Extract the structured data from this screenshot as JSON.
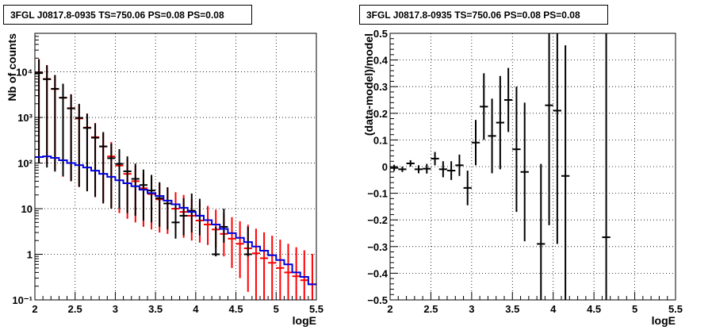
{
  "chart_data": [
    {
      "type": "line",
      "title": "3FGL J0817.8-0935 TS=750.06 PS=0.08 PS=0.08",
      "xlabel": "logE",
      "ylabel": "Nb of counts",
      "xlim": [
        2,
        5.5
      ],
      "ylim": [
        0.1,
        70000
      ],
      "y_scale": "log",
      "grid": true,
      "x_ticks": [
        "2",
        "2.5",
        "3",
        "3.5",
        "4",
        "4.5",
        "5",
        "5.5"
      ],
      "y_ticks": [
        {
          "v": 0.1,
          "label": "10⁻¹"
        },
        {
          "v": 1,
          "label": "1"
        },
        {
          "v": 10,
          "label": "10"
        },
        {
          "v": 100,
          "label": "10²"
        },
        {
          "v": 1000,
          "label": "10³"
        },
        {
          "v": 10000,
          "label": "10⁴"
        }
      ],
      "series": [
        {
          "kind": "errorbar",
          "color": "#ff0000",
          "x": [
            2.05,
            2.15,
            2.25,
            2.35,
            2.45,
            2.55,
            2.65,
            2.75,
            2.85,
            2.95,
            3.05,
            3.15,
            3.25,
            3.35,
            3.45,
            3.55,
            3.65,
            3.75,
            3.85,
            3.95,
            4.05,
            4.15,
            4.25,
            4.35,
            4.45,
            4.55,
            4.65,
            4.75,
            4.85,
            4.95,
            5.05,
            5.15,
            5.25,
            5.35,
            5.45
          ],
          "y": [
            9500,
            7000,
            4200,
            2700,
            1600,
            950,
            600,
            370,
            230,
            140,
            88,
            58,
            40,
            28,
            21,
            16,
            13,
            10,
            8.5,
            7,
            5.5,
            4.5,
            3.5,
            2.8,
            2.2,
            1.7,
            1.35,
            1.05,
            0.82,
            0.65,
            0.5,
            0.4,
            0.33,
            0.27,
            0.22
          ],
          "err_lo": [
            9400,
            6900,
            4130,
            2650,
            1560,
            920,
            575,
            352,
            216,
            130,
            80,
            52,
            35,
            24,
            17.5,
            13,
            10.2,
            7.6,
            6.2,
            5,
            3.7,
            2.9,
            2.1,
            1.9,
            1.7,
            1.4,
            1.2,
            0.95,
            0.75,
            0.6,
            0.46,
            0.37,
            0.31,
            0.25,
            0.2
          ],
          "err_hi": [
            9600,
            7100,
            4270,
            2750,
            1640,
            980,
            625,
            388,
            244,
            150,
            96,
            64,
            46,
            33,
            25,
            20,
            16,
            13,
            11.5,
            9.5,
            8,
            7,
            6,
            5,
            4.3,
            3.6,
            3.1,
            2.6,
            2.2,
            1.9,
            1.6,
            1.3,
            1.1,
            0.95,
            0.8
          ]
        },
        {
          "kind": "errorbar",
          "color": "#000000",
          "x": [
            2.05,
            2.15,
            2.25,
            2.35,
            2.45,
            2.55,
            2.65,
            2.75,
            2.85,
            2.95,
            3.05,
            3.15,
            3.25,
            3.35,
            3.45,
            3.55,
            3.65,
            3.75,
            3.85,
            3.95,
            4.05,
            4.25,
            4.35,
            4.65
          ],
          "y": [
            9400,
            6900,
            4250,
            2720,
            1580,
            980,
            590,
            360,
            232,
            128,
            96,
            66,
            45,
            33,
            25,
            17,
            13,
            5,
            7,
            9,
            7,
            1,
            4,
            1
          ],
          "err_lo": [
            9300,
            6820,
            4185,
            2668,
            1540,
            950,
            566,
            342,
            219,
            118,
            86,
            58,
            38,
            27.5,
            20,
            13,
            9.5,
            2.8,
            4.4,
            6,
            4.4,
            0.1,
            2.2,
            0.1
          ],
          "err_hi": [
            9500,
            6980,
            4315,
            2772,
            1620,
            1010,
            614,
            378,
            245,
            140,
            106,
            74,
            52,
            39,
            30,
            21,
            16.5,
            7.5,
            10,
            12.5,
            9.5,
            3,
            6,
            3
          ]
        },
        {
          "kind": "step",
          "color": "#0000dd",
          "edges": [
            2.0,
            2.1,
            2.2,
            2.3,
            2.4,
            2.5,
            2.6,
            2.7,
            2.8,
            2.9,
            3.0,
            3.1,
            3.2,
            3.3,
            3.4,
            3.5,
            3.6,
            3.7,
            3.8,
            3.9,
            4.0,
            4.1,
            4.2,
            4.3,
            4.4,
            4.5,
            4.6,
            4.7,
            4.8,
            4.9,
            5.0,
            5.1,
            5.2,
            5.3,
            5.4,
            5.5
          ],
          "y": [
            135,
            140,
            130,
            115,
            100,
            90,
            80,
            68,
            58,
            50,
            42,
            36,
            31,
            26,
            22,
            19,
            15,
            12.5,
            10.5,
            8.5,
            7,
            5.6,
            4.5,
            3.6,
            2.9,
            2.3,
            1.85,
            1.48,
            1.2,
            0.95,
            0.75,
            0.6,
            0.4,
            0.32,
            0.22
          ]
        }
      ]
    },
    {
      "type": "scatter",
      "title": "3FGL J0817.8-0935 TS=750.06 PS=0.08 PS=0.08",
      "xlabel": "logE",
      "ylabel": "(data-model)/model",
      "xlim": [
        2,
        5.5
      ],
      "ylim": [
        -0.5,
        0.5
      ],
      "grid": true,
      "x_ticks": [
        "2",
        "2.5",
        "3",
        "3.5",
        "4",
        "4.5",
        "5",
        "5.5"
      ],
      "y_ticks": [
        {
          "v": -0.5,
          "label": "−0.5"
        },
        {
          "v": -0.4,
          "label": "−0.4"
        },
        {
          "v": -0.3,
          "label": "−0.3"
        },
        {
          "v": -0.2,
          "label": "−0.2"
        },
        {
          "v": -0.1,
          "label": "−0.1"
        },
        {
          "v": 0,
          "label": "0"
        },
        {
          "v": 0.1,
          "label": "0.1"
        },
        {
          "v": 0.2,
          "label": "0.2"
        },
        {
          "v": 0.3,
          "label": "0.3"
        },
        {
          "v": 0.4,
          "label": "0.4"
        },
        {
          "v": 0.5,
          "label": "0.5"
        }
      ],
      "series": [
        {
          "kind": "errorbar",
          "color": "#000000",
          "x": [
            2.05,
            2.15,
            2.25,
            2.35,
            2.45,
            2.55,
            2.65,
            2.75,
            2.85,
            2.95,
            3.05,
            3.15,
            3.25,
            3.35,
            3.45,
            3.55,
            3.65,
            3.85,
            3.95,
            4.05,
            4.15,
            4.65
          ],
          "y": [
            -0.005,
            -0.01,
            0.012,
            -0.01,
            -0.008,
            0.03,
            -0.01,
            -0.015,
            0.005,
            -0.08,
            0.09,
            0.225,
            0.115,
            0.165,
            0.25,
            0.065,
            -0.02,
            -0.29,
            0.23,
            0.21,
            -0.035,
            -0.265
          ],
          "err": [
            0.012,
            0.01,
            0.012,
            0.015,
            0.018,
            0.025,
            0.03,
            0.035,
            0.04,
            0.065,
            0.085,
            0.125,
            0.14,
            0.175,
            0.12,
            0.235,
            0.26,
            0.3,
            0.45,
            0.5,
            0.49,
            0.85
          ]
        }
      ]
    }
  ]
}
